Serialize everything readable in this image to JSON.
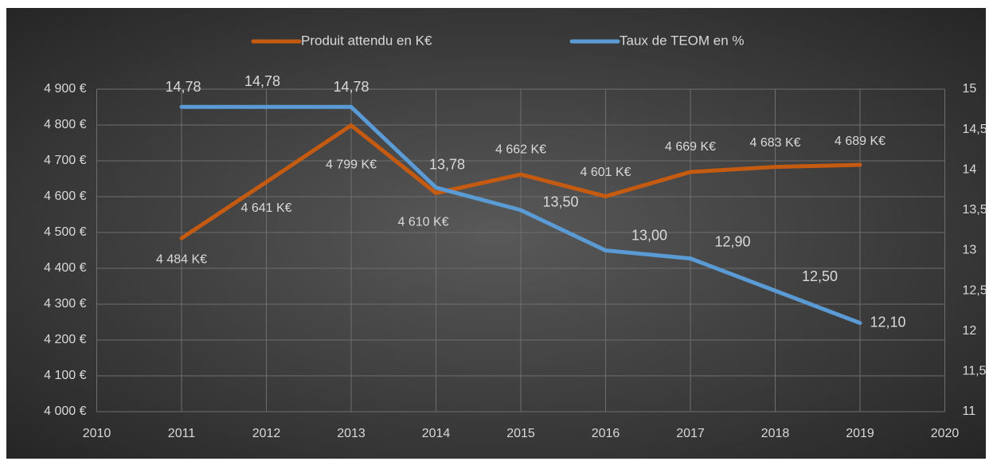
{
  "chart_data": {
    "type": "line",
    "x": [
      2011,
      2012,
      2013,
      2014,
      2015,
      2016,
      2017,
      2018,
      2019
    ],
    "xlim": [
      2010,
      2020
    ],
    "xticks": [
      2010,
      2011,
      2012,
      2013,
      2014,
      2015,
      2016,
      2017,
      2018,
      2019,
      2020
    ],
    "ylim": [
      4000,
      4900
    ],
    "yticks": [
      {
        "value": 4000,
        "label": "4 000 €"
      },
      {
        "value": 4100,
        "label": "4 100 €"
      },
      {
        "value": 4200,
        "label": "4 200 €"
      },
      {
        "value": 4300,
        "label": "4 300 €"
      },
      {
        "value": 4400,
        "label": "4 400 €"
      },
      {
        "value": 4500,
        "label": "4 500 €"
      },
      {
        "value": 4600,
        "label": "4 600 €"
      },
      {
        "value": 4700,
        "label": "4 700 €"
      },
      {
        "value": 4800,
        "label": "4 800 €"
      },
      {
        "value": 4900,
        "label": "4 900 €"
      }
    ],
    "y2lim": [
      11,
      15
    ],
    "y2ticks": [
      11,
      {
        "value": 11.5,
        "label": "11,5"
      },
      12,
      {
        "value": 12.5,
        "label": "12,5"
      },
      13,
      {
        "value": 13.5,
        "label": "13,5"
      },
      14,
      {
        "value": 14.5,
        "label": "14,5"
      },
      15
    ],
    "grid": true,
    "legend": "top",
    "series": [
      {
        "name": "Produit attendu en K€",
        "color": "#c55a11",
        "values": [
          4484,
          4641,
          4799,
          4610,
          4662,
          4601,
          4669,
          4683,
          4689
        ],
        "value_labels": [
          "4 484 K€",
          "4 641 K€",
          "4 799 K€",
          "4 610 K€",
          "4 662 K€",
          "4 601 K€",
          "4 669 K€",
          "4 683 K€",
          "4 689 K€"
        ]
      },
      {
        "name": "Taux de TEOM en %",
        "color": "#5b9bd5",
        "axis": "y2",
        "values": [
          14.78,
          14.78,
          14.78,
          13.78,
          13.5,
          13.0,
          12.9,
          12.5,
          12.1
        ],
        "value_labels": [
          "14,78",
          "14,78",
          "14,78",
          "13,78",
          "13,50",
          "13,00",
          "12,90",
          "12,50",
          "12,10"
        ]
      }
    ]
  }
}
